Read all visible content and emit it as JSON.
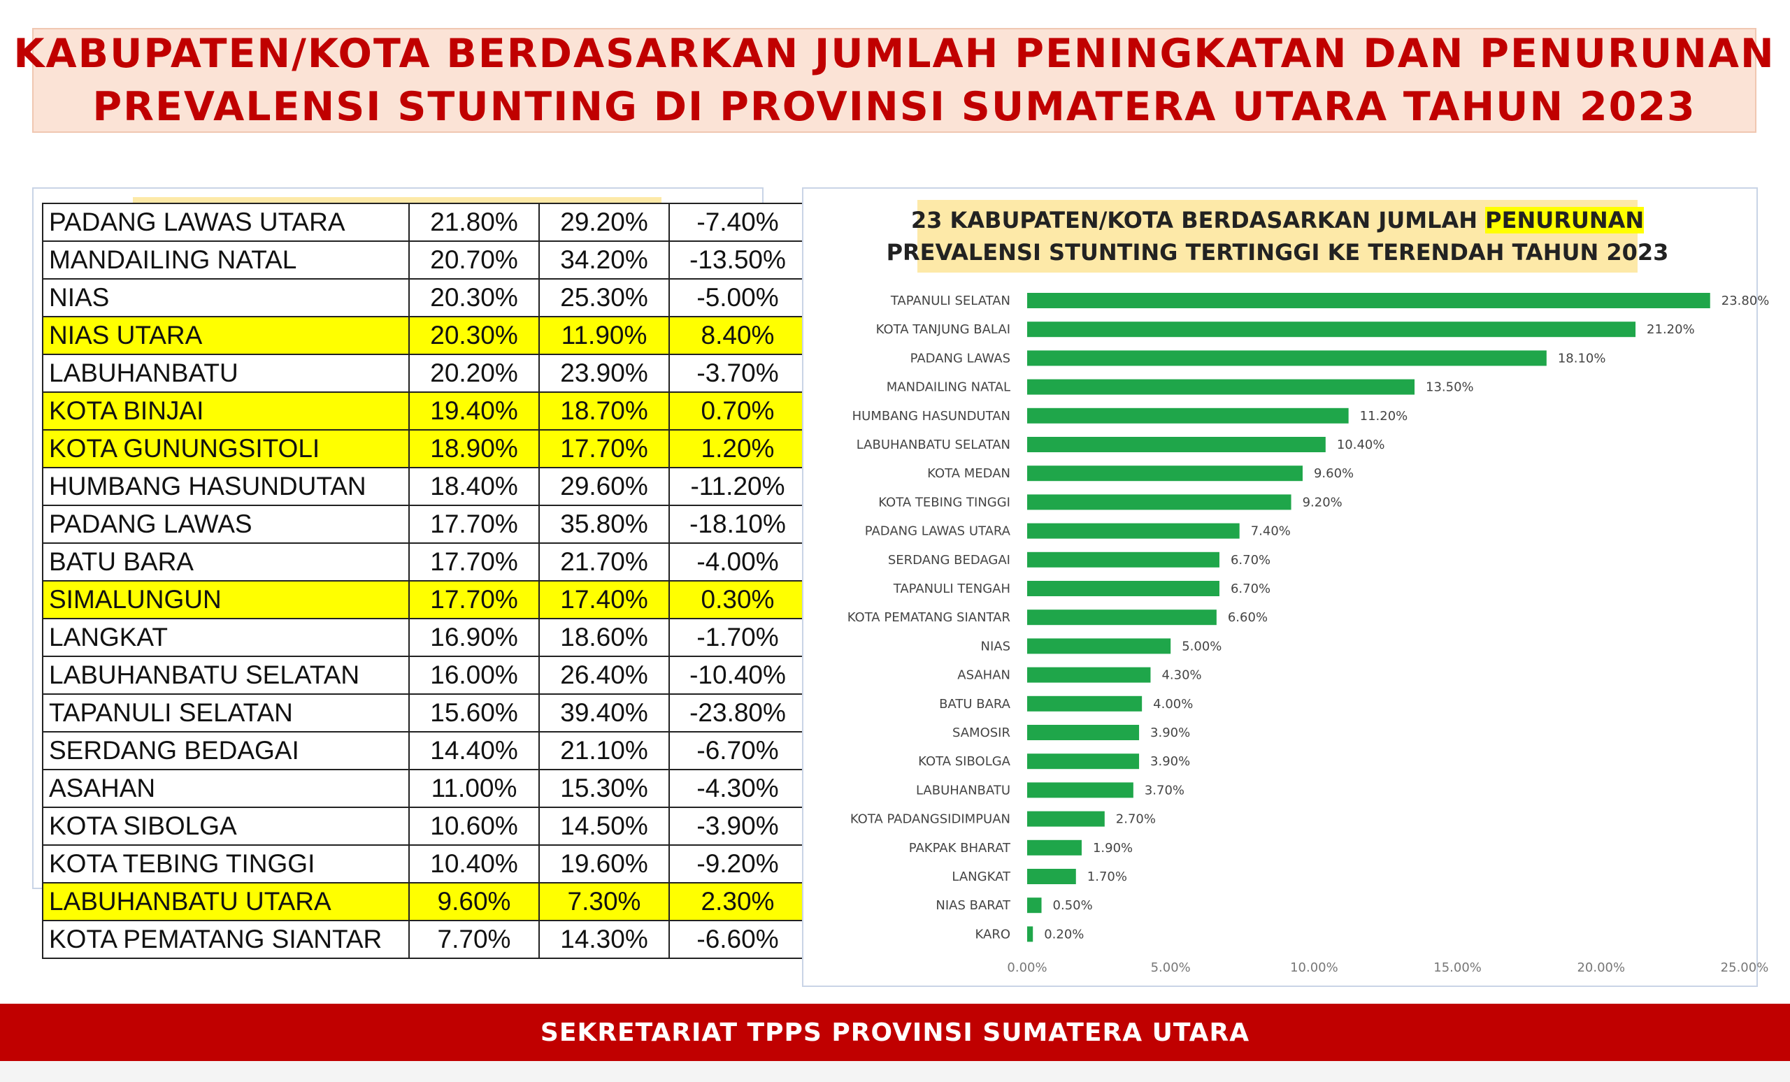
{
  "header": {
    "title_line1": "KABUPATEN/KOTA BERDASARKAN JUMLAH PENINGKATAN DAN PENURUNAN",
    "title_line2": "PREVALENSI STUNTING DI PROVINSI SUMATERA UTARA TAHUN 2023",
    "background_color": "#fbe3d6",
    "text_color": "#c00000"
  },
  "table": {
    "highlight_color": "#ffff00",
    "rows": [
      {
        "name": "PADANG LAWAS UTARA",
        "v2023": "21.80%",
        "v2022": "29.20%",
        "change": "-7.40%",
        "highlight": false
      },
      {
        "name": "MANDAILING NATAL",
        "v2023": "20.70%",
        "v2022": "34.20%",
        "change": "-13.50%",
        "highlight": false
      },
      {
        "name": "NIAS",
        "v2023": "20.30%",
        "v2022": "25.30%",
        "change": "-5.00%",
        "highlight": false
      },
      {
        "name": "NIAS UTARA",
        "v2023": "20.30%",
        "v2022": "11.90%",
        "change": "8.40%",
        "highlight": true
      },
      {
        "name": "LABUHANBATU",
        "v2023": "20.20%",
        "v2022": "23.90%",
        "change": "-3.70%",
        "highlight": false
      },
      {
        "name": "KOTA BINJAI",
        "v2023": "19.40%",
        "v2022": "18.70%",
        "change": "0.70%",
        "highlight": true
      },
      {
        "name": "KOTA GUNUNGSITOLI",
        "v2023": "18.90%",
        "v2022": "17.70%",
        "change": "1.20%",
        "highlight": true
      },
      {
        "name": "HUMBANG HASUNDUTAN",
        "v2023": "18.40%",
        "v2022": "29.60%",
        "change": "-11.20%",
        "highlight": false
      },
      {
        "name": "PADANG LAWAS",
        "v2023": "17.70%",
        "v2022": "35.80%",
        "change": "-18.10%",
        "highlight": false
      },
      {
        "name": "BATU BARA",
        "v2023": "17.70%",
        "v2022": "21.70%",
        "change": "-4.00%",
        "highlight": false
      },
      {
        "name": "SIMALUNGUN",
        "v2023": "17.70%",
        "v2022": "17.40%",
        "change": "0.30%",
        "highlight": true
      },
      {
        "name": "LANGKAT",
        "v2023": "16.90%",
        "v2022": "18.60%",
        "change": "-1.70%",
        "highlight": false
      },
      {
        "name": "LABUHANBATU SELATAN",
        "v2023": "16.00%",
        "v2022": "26.40%",
        "change": "-10.40%",
        "highlight": false
      },
      {
        "name": "TAPANULI SELATAN",
        "v2023": "15.60%",
        "v2022": "39.40%",
        "change": "-23.80%",
        "highlight": false
      },
      {
        "name": "SERDANG BEDAGAI",
        "v2023": "14.40%",
        "v2022": "21.10%",
        "change": "-6.70%",
        "highlight": false
      },
      {
        "name": "ASAHAN",
        "v2023": "11.00%",
        "v2022": "15.30%",
        "change": "-4.30%",
        "highlight": false
      },
      {
        "name": "KOTA SIBOLGA",
        "v2023": "10.60%",
        "v2022": "14.50%",
        "change": "-3.90%",
        "highlight": false
      },
      {
        "name": "KOTA TEBING TINGGI",
        "v2023": "10.40%",
        "v2022": "19.60%",
        "change": "-9.20%",
        "highlight": false
      },
      {
        "name": "LABUHANBATU UTARA",
        "v2023": "9.60%",
        "v2022": "7.30%",
        "change": "2.30%",
        "highlight": true
      },
      {
        "name": "KOTA PEMATANG SIANTAR",
        "v2023": "7.70%",
        "v2022": "14.30%",
        "change": "-6.60%",
        "highlight": false
      }
    ]
  },
  "chart_title": {
    "line1_before": "23 KABUPATEN/KOTA BERDASARKAN JUMLAH ",
    "line1_highlight": "PENURUNAN",
    "line2": "PREVALENSI STUNTING TERTINGGI KE TERENDAH TAHUN 2023"
  },
  "chart_data": {
    "type": "bar",
    "orientation": "horizontal",
    "title": "23 KABUPATEN/KOTA BERDASARKAN JUMLAH PENURUNAN PREVALENSI STUNTING TERTINGGI KE TERENDAH TAHUN 2023",
    "bar_color": "#1fa64a",
    "categories": [
      "TAPANULI SELATAN",
      "KOTA TANJUNG BALAI",
      "PADANG LAWAS",
      "MANDAILING NATAL",
      "HUMBANG HASUNDUTAN",
      "LABUHANBATU SELATAN",
      "KOTA MEDAN",
      "KOTA TEBING TINGGI",
      "PADANG LAWAS UTARA",
      "SERDANG BEDAGAI",
      "TAPANULI TENGAH",
      "KOTA PEMATANG SIANTAR",
      "NIAS",
      "ASAHAN",
      "BATU BARA",
      "SAMOSIR",
      "KOTA SIBOLGA",
      "LABUHANBATU",
      "KOTA PADANGSIDIMPUAN",
      "PAKPAK BHARAT",
      "LANGKAT",
      "NIAS BARAT",
      "KARO"
    ],
    "values": [
      23.8,
      21.2,
      18.1,
      13.5,
      11.2,
      10.4,
      9.6,
      9.2,
      7.4,
      6.7,
      6.7,
      6.6,
      5.0,
      4.3,
      4.0,
      3.9,
      3.9,
      3.7,
      2.7,
      1.9,
      1.7,
      0.5,
      0.2
    ],
    "value_labels": [
      "23.80%",
      "21.20%",
      "18.10%",
      "13.50%",
      "11.20%",
      "10.40%",
      "9.60%",
      "9.20%",
      "7.40%",
      "6.70%",
      "6.70%",
      "6.60%",
      "5.00%",
      "4.30%",
      "4.00%",
      "3.90%",
      "3.90%",
      "3.70%",
      "2.70%",
      "1.90%",
      "1.70%",
      "0.50%",
      "0.20%"
    ],
    "xlim": [
      0,
      25
    ],
    "xticks": [
      0,
      5,
      10,
      15,
      20,
      25
    ],
    "xtick_labels": [
      "0.00%",
      "5.00%",
      "10.00%",
      "15.00%",
      "20.00%",
      "25.00%"
    ],
    "grid": false,
    "legend": false
  },
  "footer": {
    "text": "SEKRETARIAT TPPS PROVINSI SUMATERA UTARA",
    "background_color": "#c00000"
  }
}
